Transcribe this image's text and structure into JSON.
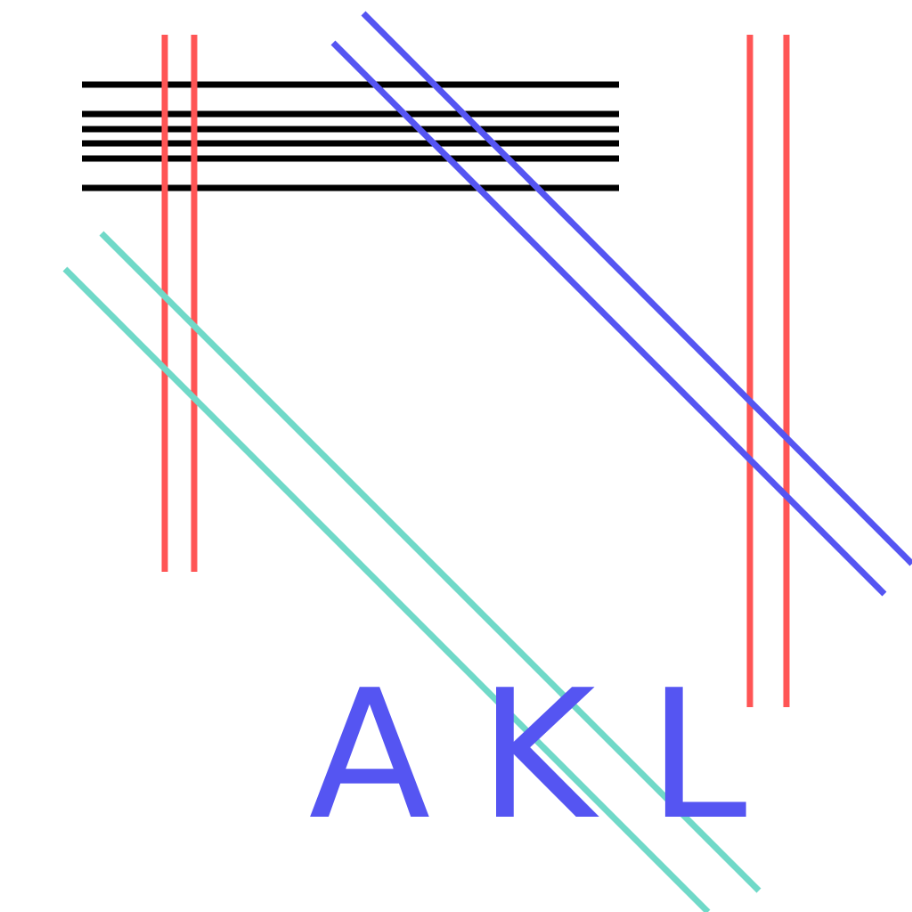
{
  "colors": {
    "background": "#ffffff",
    "black": "#000000",
    "red": "#ff5555",
    "blue": "#5555f2",
    "teal": "#70d9c8"
  },
  "text": {
    "letter_a": "A",
    "letter_k": "K",
    "letter_l": "L"
  }
}
